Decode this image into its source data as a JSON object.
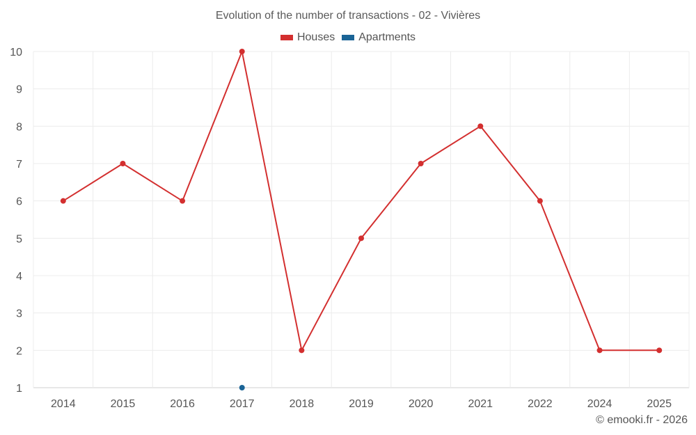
{
  "chart_data": {
    "type": "line",
    "title": "Evolution of the number of transactions - 02 - Vivières",
    "categories": [
      "2014",
      "2015",
      "2016",
      "2017",
      "2018",
      "2019",
      "2020",
      "2021",
      "2022",
      "2024",
      "2025"
    ],
    "ylim": [
      1,
      10
    ],
    "yticks": [
      1,
      2,
      3,
      4,
      5,
      6,
      7,
      8,
      9,
      10
    ],
    "xlabel": "",
    "ylabel": "",
    "grid": true,
    "legend_position": "top-center",
    "series": [
      {
        "name": "Houses",
        "color": "#d32f2f",
        "values": [
          6,
          7,
          6,
          10,
          2,
          5,
          7,
          8,
          6,
          2,
          2
        ]
      },
      {
        "name": "Apartments",
        "color": "#1a6496",
        "values": [
          null,
          null,
          null,
          1,
          null,
          null,
          null,
          null,
          null,
          null,
          null
        ]
      }
    ]
  },
  "footer": "© emooki.fr - 2026"
}
